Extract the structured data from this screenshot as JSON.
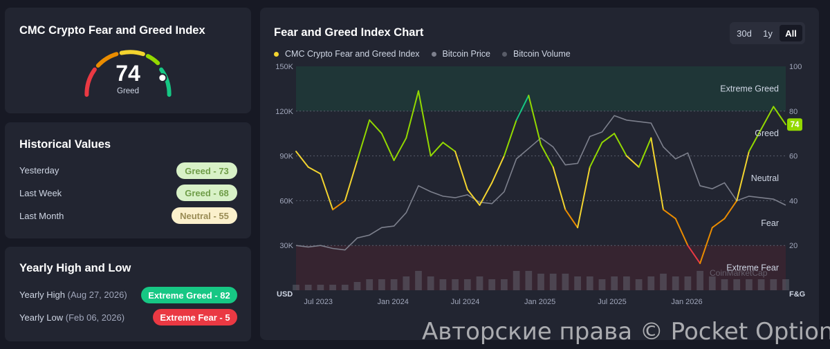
{
  "gauge_card": {
    "title": "CMC Crypto Fear and Greed Index",
    "value": "74",
    "label": "Greed",
    "level": 0.74
  },
  "historical": {
    "title": "Historical Values",
    "rows": [
      {
        "label": "Yesterday",
        "badge": "Greed - 73"
      },
      {
        "label": "Last Week",
        "badge": "Greed - 68"
      },
      {
        "label": "Last Month",
        "badge": "Neutral - 55"
      }
    ]
  },
  "yearly": {
    "title": "Yearly High and Low",
    "high_label": "Yearly High",
    "high_date": "(Aug 27, 2026)",
    "high_badge": "Extreme Greed - 82",
    "low_label": "Yearly Low",
    "low_date": "(Feb 06, 2026)",
    "low_badge": "Extreme Fear - 5"
  },
  "chart_panel": {
    "title": "Fear and Greed Index Chart",
    "ranges": [
      "30d",
      "1y",
      "All"
    ],
    "active_range": "All",
    "legend": [
      "CMC Crypto Fear and Greed Index",
      "Bitcoin Price",
      "Bitcoin Volume"
    ],
    "zone_labels": [
      "Extreme Greed",
      "Greed",
      "Neutral",
      "Fear",
      "Extreme Fear"
    ],
    "left_axis_unit": "USD",
    "right_axis_unit": "F&G",
    "current_badge": "74",
    "chart_watermark": "CoinMarketCap"
  },
  "colors": {
    "extreme_fear": "#ea3943",
    "fear": "#ea8c00",
    "neutral": "#f3d42f",
    "greed": "#93d900",
    "extreme_greed": "#16c784",
    "price_line": "#7d808d",
    "background": "#171924",
    "card": "#222531"
  },
  "chart_data": {
    "type": "line",
    "x_ticks": [
      "Jul 2023",
      "Jan 2024",
      "Jul 2024",
      "Jan 2025",
      "Jul 2025",
      "Jan 2026"
    ],
    "left_ticks": [
      "150K",
      "120K",
      "90K",
      "60K",
      "30K"
    ],
    "right_ticks": [
      "100",
      "80",
      "60",
      "40",
      "20"
    ],
    "left_axis_range": [
      0,
      150000
    ],
    "right_axis_range": [
      0,
      100
    ],
    "zones": [
      {
        "name": "Extreme Fear",
        "from": 0,
        "to": 20
      },
      {
        "name": "Fear",
        "from": 20,
        "to": 40
      },
      {
        "name": "Neutral",
        "from": 40,
        "to": 60
      },
      {
        "name": "Greed",
        "from": 60,
        "to": 80
      },
      {
        "name": "Extreme Greed",
        "from": 80,
        "to": 100
      }
    ],
    "x": [
      "2023-05",
      "2023-06",
      "2023-07",
      "2023-08",
      "2023-09",
      "2023-10",
      "2023-11",
      "2023-12",
      "2024-01",
      "2024-02",
      "2024-03",
      "2024-04",
      "2024-05",
      "2024-06",
      "2024-07",
      "2024-08",
      "2024-09",
      "2024-10",
      "2024-11",
      "2024-12",
      "2025-01",
      "2025-02",
      "2025-03",
      "2025-04",
      "2025-05",
      "2025-06",
      "2025-07",
      "2025-08",
      "2025-09",
      "2025-10",
      "2025-11",
      "2025-12",
      "2026-01",
      "2026-02",
      "2026-03",
      "2026-04",
      "2026-05",
      "2026-06",
      "2026-07",
      "2026-08",
      "2026-09"
    ],
    "series": [
      {
        "name": "CMC Crypto Fear and Greed Index",
        "values": [
          62,
          55,
          52,
          36,
          40,
          58,
          76,
          70,
          58,
          68,
          89,
          60,
          66,
          62,
          45,
          38,
          48,
          60,
          76,
          87,
          65,
          55,
          36,
          28,
          55,
          66,
          70,
          60,
          55,
          68,
          36,
          32,
          20,
          12,
          28,
          32,
          40,
          62,
          72,
          82,
          74
        ]
      },
      {
        "name": "Bitcoin Price",
        "values": [
          30000,
          29000,
          30000,
          28000,
          27000,
          35000,
          37000,
          42000,
          43000,
          52000,
          70000,
          66000,
          63000,
          62000,
          64000,
          59000,
          58000,
          66000,
          88000,
          95000,
          102000,
          96000,
          84000,
          85000,
          103000,
          106000,
          117000,
          114000,
          113000,
          112000,
          96000,
          88000,
          92000,
          70000,
          68000,
          72000,
          60000,
          63000,
          62000,
          61000,
          57000
        ]
      },
      {
        "name": "Bitcoin Volume",
        "values": [
          2,
          2,
          2,
          2,
          2,
          3,
          4,
          4,
          4,
          5,
          7,
          5,
          4,
          4,
          4,
          5,
          4,
          4,
          7,
          7,
          6,
          6,
          6,
          5,
          5,
          4,
          5,
          5,
          4,
          5,
          6,
          5,
          5,
          7,
          5,
          4,
          4,
          4,
          4,
          4,
          4
        ]
      }
    ]
  },
  "watermark": "Авторские права © Pocket Option"
}
